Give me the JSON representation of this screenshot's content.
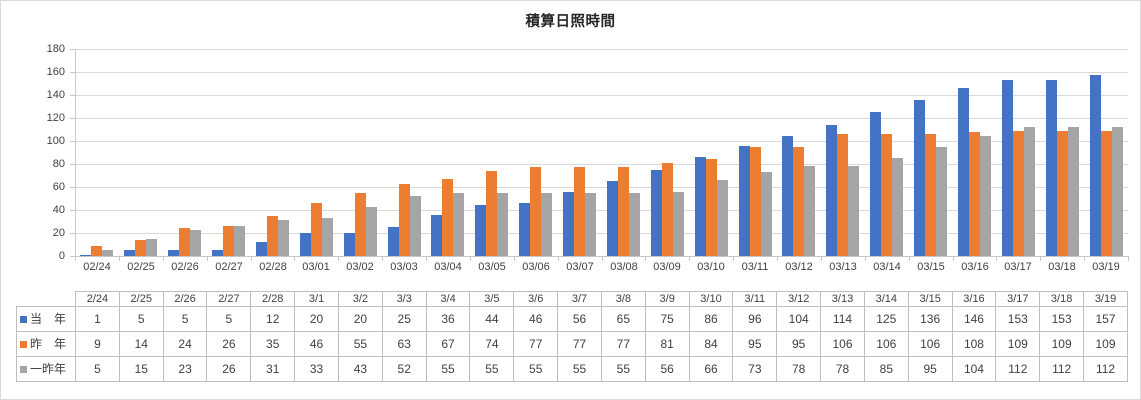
{
  "chart_data": {
    "type": "bar",
    "title": "積算日照時間",
    "xlabel": "",
    "ylabel": "",
    "ylim": [
      0,
      180
    ],
    "y_step": 20,
    "y_ticks": [
      0,
      20,
      40,
      60,
      80,
      100,
      120,
      140,
      160,
      180
    ],
    "grid": true,
    "legend_position": "data-table-left",
    "categories": [
      "02/24",
      "02/25",
      "02/26",
      "02/27",
      "02/28",
      "03/01",
      "03/02",
      "03/03",
      "03/04",
      "03/05",
      "03/06",
      "03/07",
      "03/08",
      "03/09",
      "03/10",
      "03/11",
      "03/12",
      "03/13",
      "03/14",
      "03/15",
      "03/16",
      "03/17",
      "03/18",
      "03/19"
    ],
    "table_headers": [
      "2/24",
      "2/25",
      "2/26",
      "2/27",
      "2/28",
      "3/1",
      "3/2",
      "3/3",
      "3/4",
      "3/5",
      "3/6",
      "3/7",
      "3/8",
      "3/9",
      "3/10",
      "3/11",
      "3/12",
      "3/13",
      "3/14",
      "3/15",
      "3/16",
      "3/17",
      "3/18",
      "3/19"
    ],
    "series": [
      {
        "name": "当　年",
        "color": "#4472C4",
        "values": [
          1,
          5,
          5,
          5,
          12,
          20,
          20,
          25,
          36,
          44,
          46,
          56,
          65,
          75,
          86,
          96,
          104,
          114,
          125,
          136,
          146,
          153,
          153,
          157
        ]
      },
      {
        "name": "昨　年",
        "color": "#ED7D31",
        "values": [
          9,
          14,
          24,
          26,
          35,
          46,
          55,
          63,
          67,
          74,
          77,
          77,
          77,
          81,
          84,
          95,
          95,
          106,
          106,
          106,
          108,
          109,
          109,
          109
        ]
      },
      {
        "name": "一昨年",
        "color": "#A5A5A5",
        "values": [
          5,
          15,
          23,
          26,
          31,
          33,
          43,
          52,
          55,
          55,
          55,
          55,
          55,
          56,
          66,
          73,
          78,
          78,
          85,
          95,
          104,
          112,
          112,
          112
        ]
      }
    ]
  }
}
